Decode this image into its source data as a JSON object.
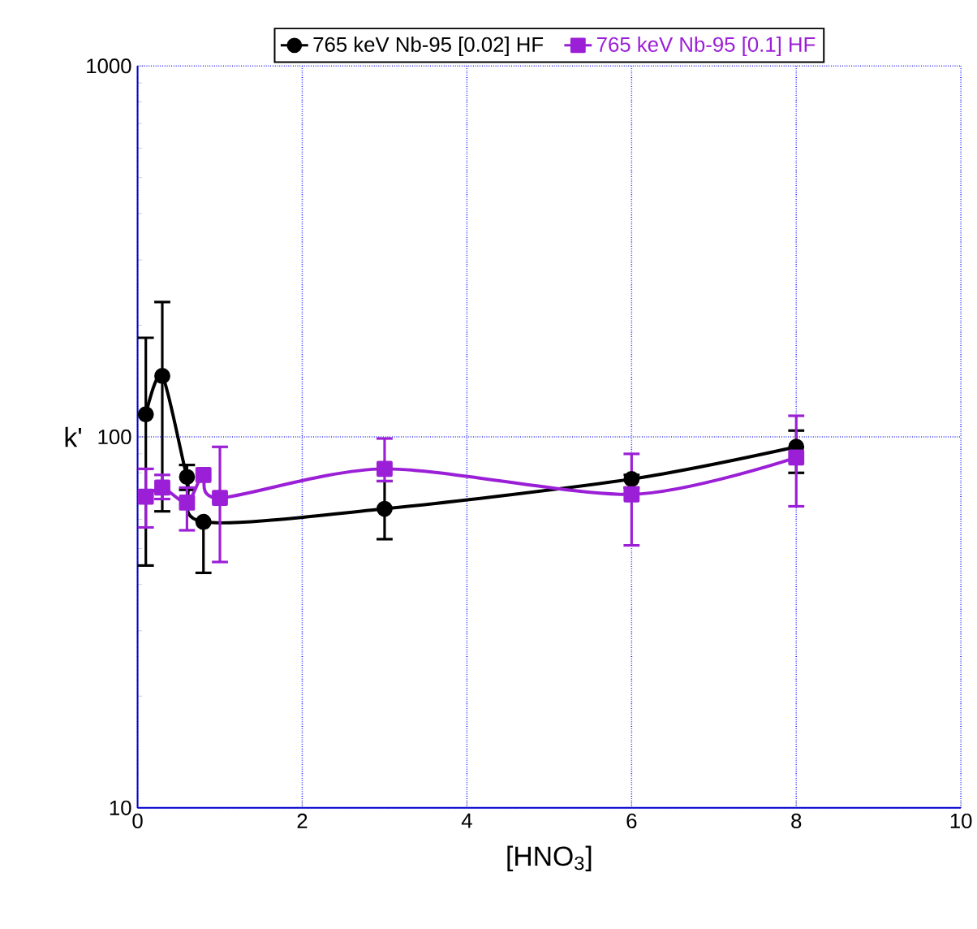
{
  "chart_data": {
    "type": "line",
    "xlabel": "[HNO$_{3}$]",
    "ylabel": "k'",
    "xlim": [
      0,
      10
    ],
    "xticks": [
      0,
      2,
      4,
      6,
      8,
      10
    ],
    "ylim": [
      10,
      1000
    ],
    "yticks": [
      10,
      100,
      1000
    ],
    "log": "y",
    "grid": true,
    "legend": "top",
    "series": [
      {
        "name": "765 keV Nb-95 [0.02] HF",
        "color": "#000000",
        "marker": "circle",
        "x": [
          0.1,
          0.3,
          0.6,
          0.8,
          3,
          6,
          8
        ],
        "values": [
          115,
          146,
          78,
          59,
          64,
          77,
          94
        ],
        "errors": [
          [
            45,
            185
          ],
          [
            63,
            231
          ],
          [
            72,
            84
          ],
          [
            43,
            59
          ],
          [
            53,
            76
          ],
          [
            73,
            79
          ],
          [
            80,
            104
          ]
        ]
      },
      {
        "name": "765 keV Nb-95 [0.1] HF",
        "color": "#9b1fd6",
        "marker": "square",
        "x": [
          0.1,
          0.3,
          0.6,
          0.8,
          1.0,
          3,
          6,
          8
        ],
        "values": [
          69,
          73,
          66.5,
          79,
          68.5,
          82,
          70,
          88
        ],
        "errors": [
          [
            57,
            82
          ],
          [
            68,
            79
          ],
          [
            56,
            73
          ],
          null,
          [
            46,
            94
          ],
          [
            76,
            99
          ],
          [
            51,
            90
          ],
          [
            65,
            114
          ]
        ]
      }
    ]
  }
}
